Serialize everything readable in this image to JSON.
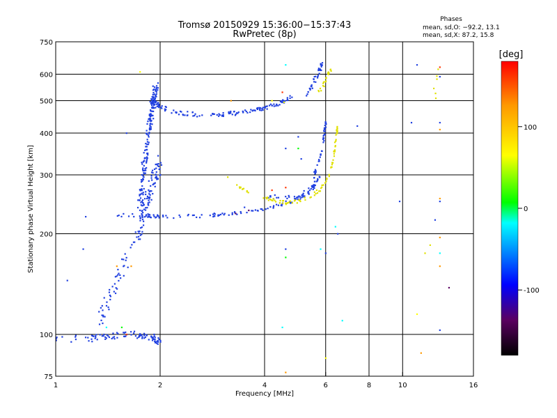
{
  "chart_data": {
    "type": "scatter",
    "title": "Tromsø 20150929 15:36:00−15:37:43",
    "subtitle": "RwPretec (8p)",
    "xlabel": "Frequency [MHz]",
    "ylabel": "Stationary phase Virtual Height [km]",
    "x_scale": "log",
    "y_scale": "log",
    "xlim": [
      1,
      16
    ],
    "ylim": [
      75,
      750
    ],
    "x_ticks": [
      1,
      2,
      4,
      6,
      8,
      10,
      16
    ],
    "y_ticks": [
      75,
      100,
      200,
      300,
      400,
      500,
      600,
      750
    ],
    "grid_x": [
      2,
      4,
      6,
      8,
      10
    ],
    "grid_y": [
      100,
      200,
      300,
      400,
      500,
      600
    ],
    "phases_box": {
      "heading": "Phases",
      "line_o": "mean, sd,O: −92.2, 13.1",
      "line_x": "mean, sd,X:  87.2, 15.8"
    },
    "colorbar": {
      "label": "[deg]",
      "range": [
        -180,
        180
      ],
      "ticks": [
        100,
        0,
        -100
      ],
      "colors": [
        "#000000",
        "#5a0060",
        "#0000ff",
        "#00ffff",
        "#00ff00",
        "#ffff00",
        "#ff9900",
        "#ff0000"
      ]
    },
    "series": [
      {
        "color": "#2040e0",
        "segments": [
          {
            "kind": "band",
            "x": [
              1.0,
              1.25,
              1.5,
              1.7,
              1.9,
              2.0
            ],
            "y": [
              97,
              97,
              99,
              100,
              98,
              95
            ],
            "spread": 0.025,
            "n": 95
          },
          {
            "kind": "band",
            "x": [
              1.35,
              1.45,
              1.6,
              1.75,
              1.85
            ],
            "y": [
              110,
              135,
              170,
              205,
              250
            ],
            "spread": 0.06,
            "n": 80
          },
          {
            "kind": "band",
            "x": [
              1.75,
              1.8,
              1.85,
              1.9,
              1.95
            ],
            "y": [
              250,
              320,
              400,
              480,
              550
            ],
            "spread": 0.05,
            "n": 170
          },
          {
            "kind": "band",
            "x": [
              1.75,
              1.9,
              2.0
            ],
            "y": [
              230,
              280,
              330
            ],
            "spread": 0.06,
            "n": 70
          },
          {
            "kind": "band",
            "x": [
              1.5,
              1.8,
              2.0,
              2.5,
              3.0,
              3.5,
              4.0,
              4.5,
              5.0,
              5.5,
              5.7
            ],
            "y": [
              228,
              227,
              225,
              226,
              228,
              232,
              238,
              245,
              255,
              270,
              290
            ],
            "spread": 0.012,
            "n": 110
          },
          {
            "kind": "band",
            "x": [
              5.5,
              5.7,
              5.85,
              5.95,
              6.0
            ],
            "y": [
              290,
              320,
              360,
              400,
              430
            ],
            "spread": 0.015,
            "n": 40
          },
          {
            "kind": "band",
            "x": [
              1.9,
              2.0,
              2.2,
              2.5,
              3.0,
              3.5,
              4.0,
              4.5,
              4.8
            ],
            "y": [
              500,
              480,
              462,
              455,
              455,
              462,
              475,
              495,
              520
            ],
            "spread": 0.015,
            "n": 140
          },
          {
            "kind": "band",
            "x": [
              5.3,
              5.5,
              5.7,
              5.8,
              5.85
            ],
            "y": [
              520,
              560,
              600,
              630,
              640
            ],
            "spread": 0.02,
            "n": 35
          },
          {
            "kind": "band",
            "x": [
              4.0,
              4.5,
              5.0,
              5.5,
              5.8
            ],
            "y": [
              260,
              255,
              258,
              275,
              300
            ],
            "spread": 0.015,
            "n": 40
          }
        ]
      },
      {
        "color": "#e0e000",
        "segments": [
          {
            "kind": "band",
            "x": [
              3.1,
              3.4,
              3.8,
              4.2,
              4.6,
              5.0,
              5.4,
              5.8,
              6.1,
              6.3,
              6.4,
              6.5
            ],
            "y": [
              295,
              275,
              260,
              252,
              248,
              250,
              258,
              272,
              295,
              330,
              380,
              420
            ],
            "spread": 0.012,
            "n": 95
          },
          {
            "kind": "band",
            "x": [
              5.7,
              5.9,
              6.1,
              6.3
            ],
            "y": [
              520,
              560,
              600,
              620
            ],
            "spread": 0.02,
            "n": 20
          },
          {
            "kind": "band",
            "x": [
              12.3,
              12.6
            ],
            "y": [
              500,
              620
            ],
            "spread": 0.03,
            "n": 6
          }
        ]
      }
    ],
    "scatter_points": [
      {
        "x": 1.08,
        "y": 145,
        "c": "#2040e0"
      },
      {
        "x": 1.22,
        "y": 225,
        "c": "#2040e0"
      },
      {
        "x": 1.2,
        "y": 180,
        "c": "#2040e0"
      },
      {
        "x": 1.6,
        "y": 400,
        "c": "#2040e0"
      },
      {
        "x": 4.6,
        "y": 640,
        "c": "#00ffff"
      },
      {
        "x": 4.6,
        "y": 360,
        "c": "#2040e0"
      },
      {
        "x": 4.6,
        "y": 275,
        "c": "#ff3300"
      },
      {
        "x": 4.6,
        "y": 180,
        "c": "#2040e0"
      },
      {
        "x": 4.6,
        "y": 170,
        "c": "#00ff00"
      },
      {
        "x": 4.5,
        "y": 105,
        "c": "#00ffff"
      },
      {
        "x": 4.6,
        "y": 77,
        "c": "#ff9900"
      },
      {
        "x": 5.0,
        "y": 390,
        "c": "#2040e0"
      },
      {
        "x": 5.0,
        "y": 360,
        "c": "#00ff00"
      },
      {
        "x": 5.1,
        "y": 335,
        "c": "#2040e0"
      },
      {
        "x": 5.8,
        "y": 180,
        "c": "#00ffff"
      },
      {
        "x": 6.0,
        "y": 175,
        "c": "#2040e0"
      },
      {
        "x": 6.0,
        "y": 85,
        "c": "#ffff00"
      },
      {
        "x": 6.4,
        "y": 210,
        "c": "#00ffff"
      },
      {
        "x": 6.5,
        "y": 200,
        "c": "#2040e0"
      },
      {
        "x": 6.7,
        "y": 110,
        "c": "#00ffff"
      },
      {
        "x": 7.4,
        "y": 420,
        "c": "#2040e0"
      },
      {
        "x": 4.2,
        "y": 270,
        "c": "#ff3300"
      },
      {
        "x": 3.5,
        "y": 240,
        "c": "#2040e0"
      },
      {
        "x": 9.8,
        "y": 250,
        "c": "#2040e0"
      },
      {
        "x": 10.6,
        "y": 430,
        "c": "#2040e0"
      },
      {
        "x": 11.0,
        "y": 640,
        "c": "#2040e0"
      },
      {
        "x": 11.0,
        "y": 115,
        "c": "#ffff00"
      },
      {
        "x": 11.3,
        "y": 88,
        "c": "#ff9900"
      },
      {
        "x": 11.6,
        "y": 175,
        "c": "#e0e000"
      },
      {
        "x": 12.0,
        "y": 185,
        "c": "#e0e000"
      },
      {
        "x": 12.4,
        "y": 220,
        "c": "#2040e0"
      },
      {
        "x": 12.8,
        "y": 630,
        "c": "#ff3300"
      },
      {
        "x": 12.8,
        "y": 590,
        "c": "#2040e0"
      },
      {
        "x": 12.8,
        "y": 430,
        "c": "#2040e0"
      },
      {
        "x": 12.8,
        "y": 410,
        "c": "#ff9900"
      },
      {
        "x": 12.8,
        "y": 255,
        "c": "#ff9900"
      },
      {
        "x": 12.8,
        "y": 250,
        "c": "#2040e0"
      },
      {
        "x": 12.8,
        "y": 195,
        "c": "#ff9900"
      },
      {
        "x": 12.8,
        "y": 175,
        "c": "#00ffff"
      },
      {
        "x": 12.8,
        "y": 160,
        "c": "#ff9900"
      },
      {
        "x": 12.8,
        "y": 103,
        "c": "#2040e0"
      },
      {
        "x": 13.6,
        "y": 138,
        "c": "#5a0060"
      },
      {
        "x": 1.55,
        "y": 105,
        "c": "#00ff00"
      },
      {
        "x": 1.6,
        "y": 100,
        "c": "#ff3300"
      },
      {
        "x": 1.4,
        "y": 105,
        "c": "#00ffff"
      },
      {
        "x": 1.5,
        "y": 160,
        "c": "#ff9900"
      },
      {
        "x": 1.65,
        "y": 160,
        "c": "#ff9900"
      },
      {
        "x": 1.75,
        "y": 610,
        "c": "#ffff00"
      },
      {
        "x": 4.2,
        "y": 500,
        "c": "#ffff00"
      },
      {
        "x": 4.5,
        "y": 530,
        "c": "#ff3300"
      },
      {
        "x": 4.55,
        "y": 495,
        "c": "#ffff00"
      },
      {
        "x": 3.2,
        "y": 500,
        "c": "#ff9900"
      },
      {
        "x": 3.6,
        "y": 235,
        "c": "#5a0060"
      },
      {
        "x": 3.3,
        "y": 230,
        "c": "#5a0060"
      }
    ]
  }
}
